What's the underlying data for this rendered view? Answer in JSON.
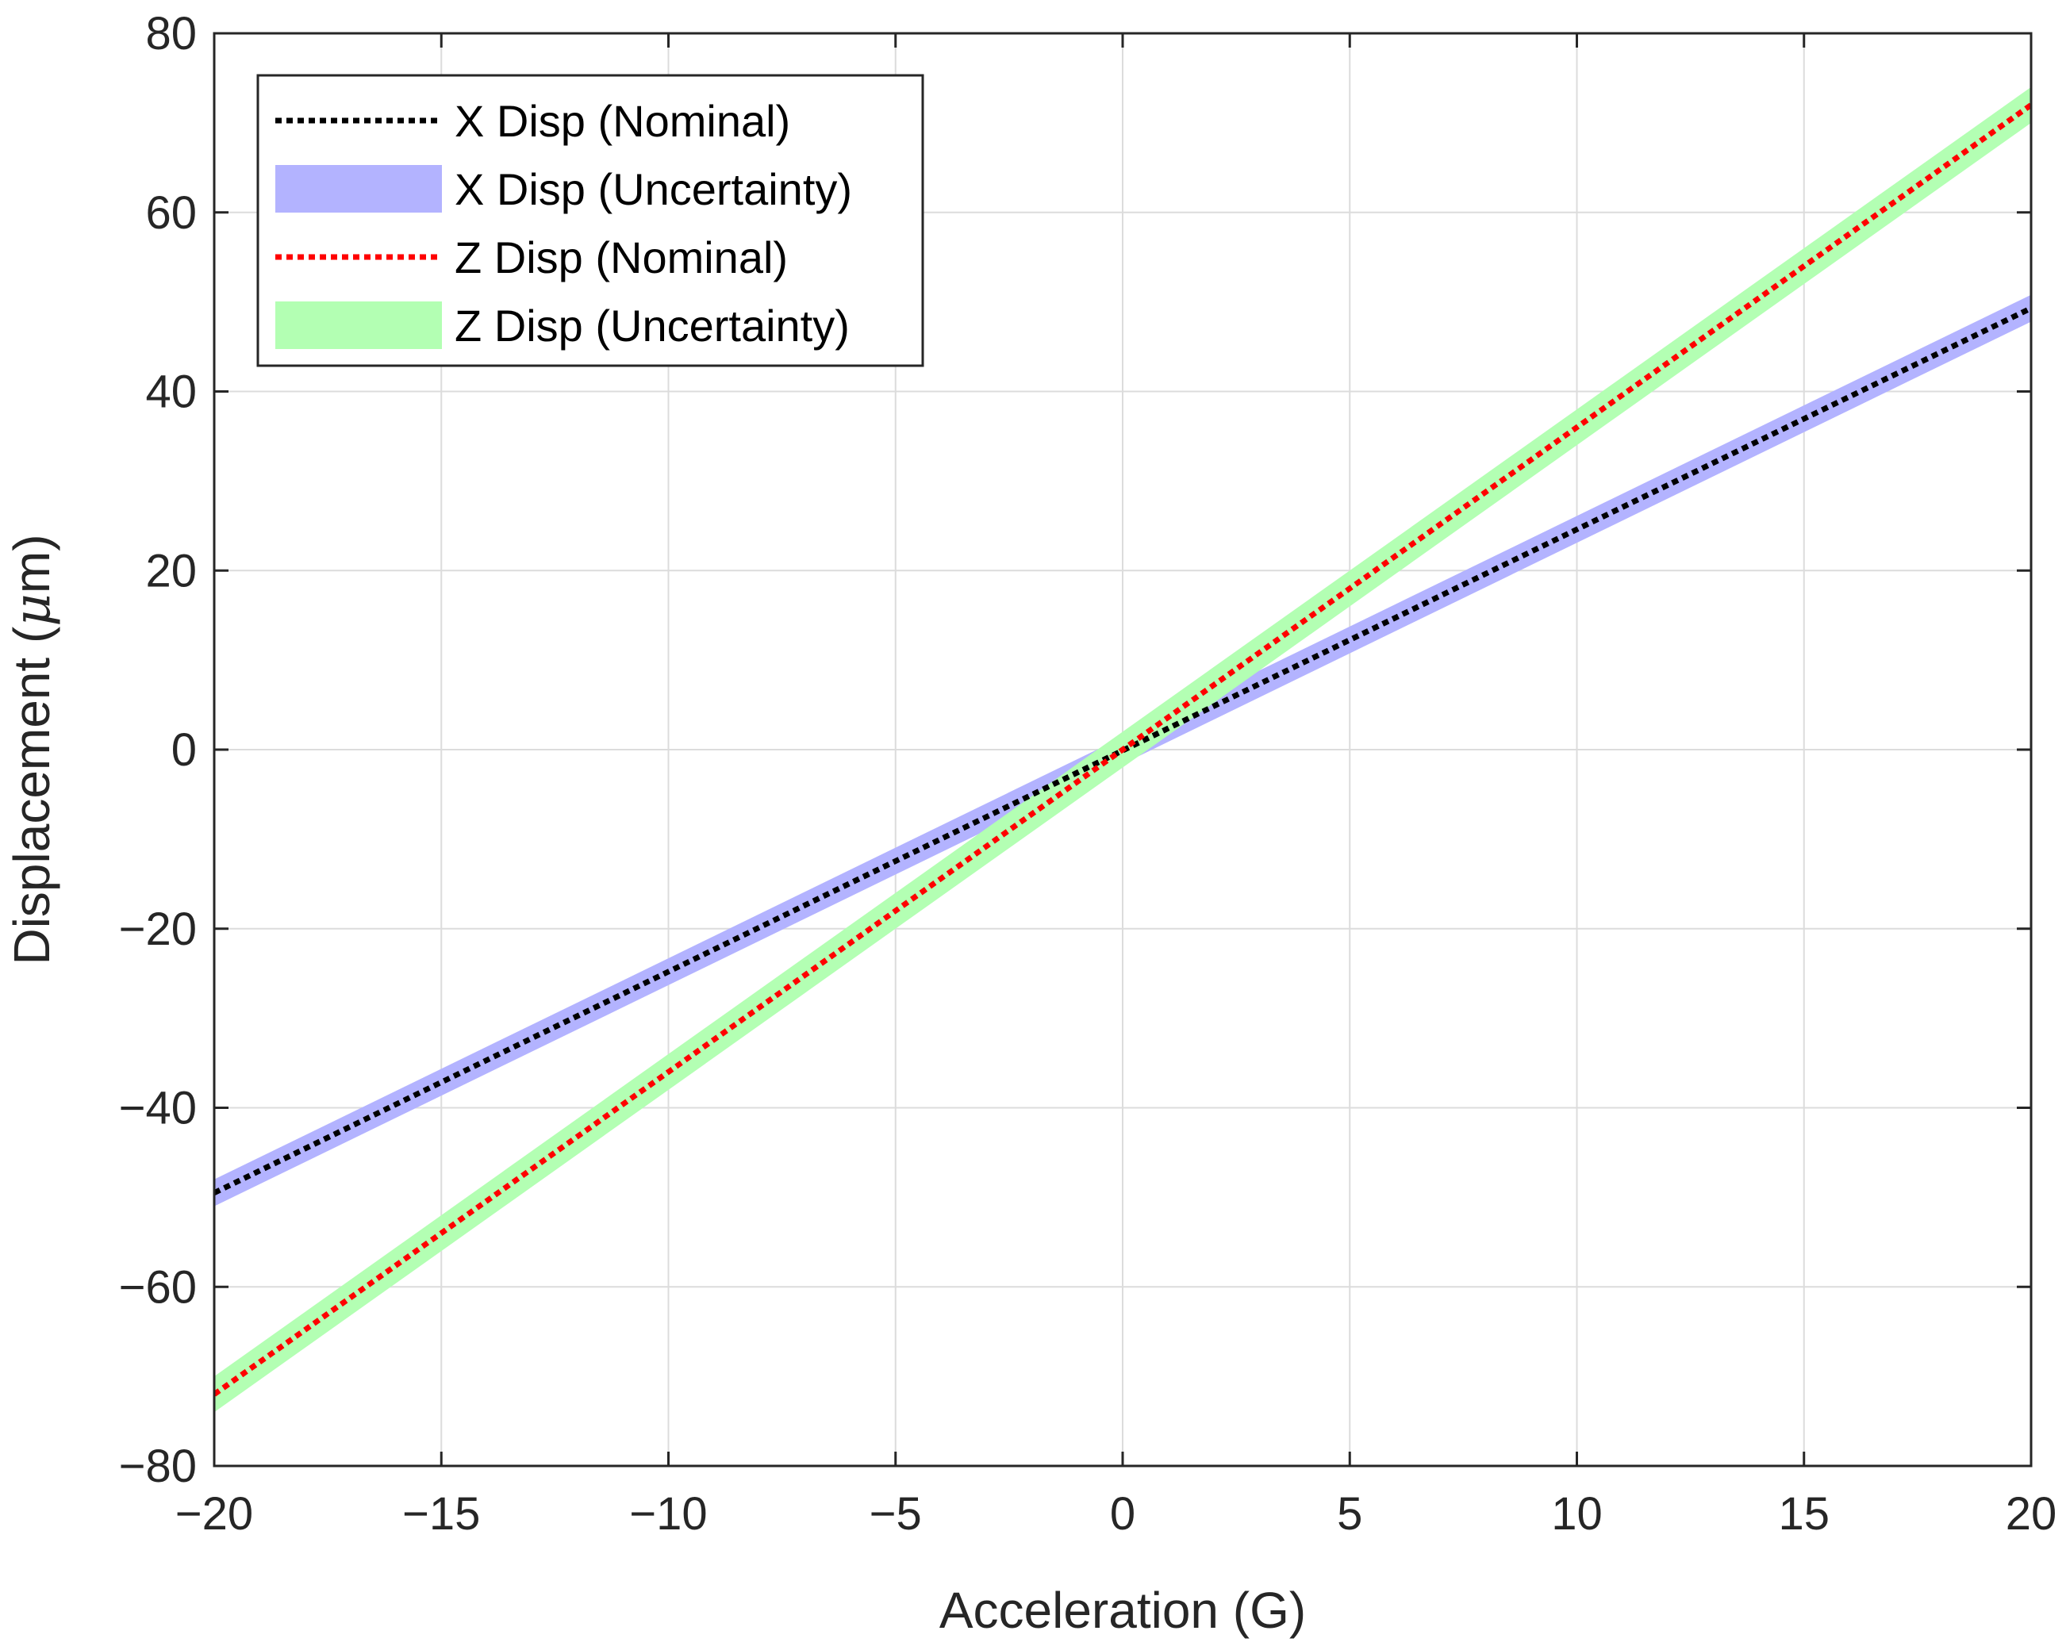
{
  "chart_data": {
    "type": "line",
    "title": "",
    "xlabel": "Acceleration (G)",
    "ylabel_prefix": "Displacement (",
    "ylabel_symbol": "μ",
    "ylabel_suffix": "m)",
    "xlim": [
      -20,
      20
    ],
    "ylim": [
      -80,
      80
    ],
    "grid": true,
    "legend_position": "top-left",
    "x_ticks": [
      -20,
      -15,
      -10,
      -5,
      0,
      5,
      10,
      15,
      20
    ],
    "x_tick_labels": [
      "−20",
      "−15",
      "−10",
      "−5",
      "0",
      "5",
      "10",
      "15",
      "20"
    ],
    "y_ticks": [
      80,
      60,
      40,
      20,
      0,
      -20,
      -40,
      -60,
      -80
    ],
    "y_tick_labels": [
      "80",
      "60",
      "40",
      "20",
      "0",
      "−20",
      "−40",
      "−60",
      "−80"
    ],
    "series": [
      {
        "name": "X Disp (Nominal)",
        "kind": "line",
        "style": "dotted",
        "color": "#000000",
        "x": [
          -20,
          20
        ],
        "y": [
          -49.5,
          49.3
        ]
      },
      {
        "name": "X Disp (Uncertainty)",
        "kind": "band",
        "color": "#b3b3ff",
        "x": [
          -20,
          20
        ],
        "lower": [
          -51.0,
          47.8
        ],
        "upper": [
          -48.0,
          50.8
        ]
      },
      {
        "name": "Z Disp (Nominal)",
        "kind": "line",
        "style": "dotted",
        "color": "#ff0000",
        "x": [
          -20,
          20
        ],
        "y": [
          -72.0,
          72.0
        ]
      },
      {
        "name": "Z Disp (Uncertainty)",
        "kind": "band",
        "color": "#b3ffb3",
        "x": [
          -20,
          20
        ],
        "lower": [
          -74.0,
          70.0
        ],
        "upper": [
          -70.0,
          74.0
        ]
      }
    ],
    "legend": [
      {
        "label": "X Disp (Nominal)",
        "symbol": "dotted-line",
        "color": "#000000"
      },
      {
        "label": "X Disp (Uncertainty)",
        "symbol": "patch",
        "color": "#b3b3ff"
      },
      {
        "label": "Z Disp (Nominal)",
        "symbol": "dotted-line",
        "color": "#ff0000"
      },
      {
        "label": "Z Disp (Uncertainty)",
        "symbol": "patch",
        "color": "#b3ffb3"
      }
    ]
  }
}
